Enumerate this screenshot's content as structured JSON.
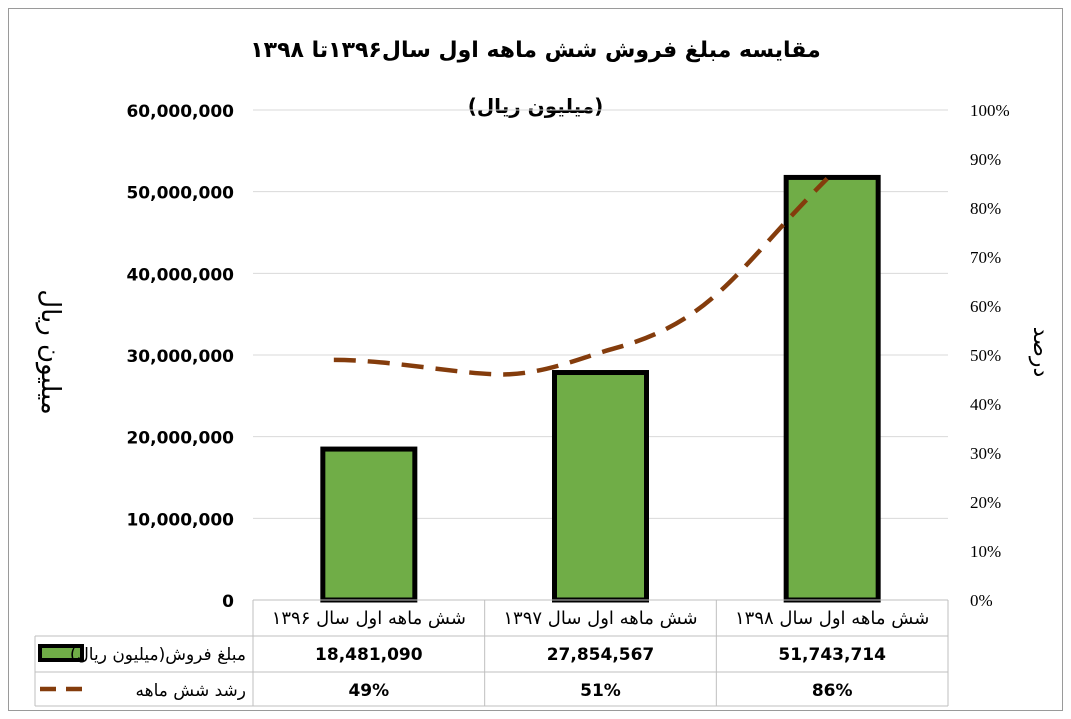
{
  "chart_data": {
    "type": "bar",
    "title": "مقایسه مبلغ فروش شش ماهه اول سال۱۳۹۶تا ۱۳۹۸",
    "subtitle": "(میلیون ریال)",
    "ylabel": "میلیون ریال",
    "y2label": "درصد",
    "categories": [
      "شش ماهه اول سال ۱۳۹۶",
      "شش ماهه اول سال ۱۳۹۷",
      "شش ماهه اول سال ۱۳۹۸"
    ],
    "yticks": [
      "0",
      "10,000,000",
      "20,000,000",
      "30,000,000",
      "40,000,000",
      "50,000,000",
      "60,000,000"
    ],
    "y2ticks": [
      "0%",
      "10%",
      "20%",
      "30%",
      "40%",
      "50%",
      "60%",
      "70%",
      "80%",
      "90%",
      "100%"
    ],
    "ylim": [
      0,
      60000000
    ],
    "y2lim": [
      0,
      100
    ],
    "grid": true,
    "series": [
      {
        "name": "مبلغ فروش(میلیون ریال)",
        "type": "bar",
        "axis": "left",
        "color": "#70ad47",
        "edge_color": "#000000",
        "values": [
          18481090,
          27854567,
          51743714
        ],
        "value_labels": [
          "18,481,090",
          "27,854,567",
          "51,743,714"
        ]
      },
      {
        "name": "رشد شش ماهه",
        "type": "line",
        "axis": "right",
        "style": "dashed",
        "color": "#843c0c",
        "values": [
          49,
          51,
          86
        ],
        "value_labels": [
          "49%",
          "51%",
          "86%"
        ]
      }
    ],
    "legend": "data table (bottom)"
  }
}
